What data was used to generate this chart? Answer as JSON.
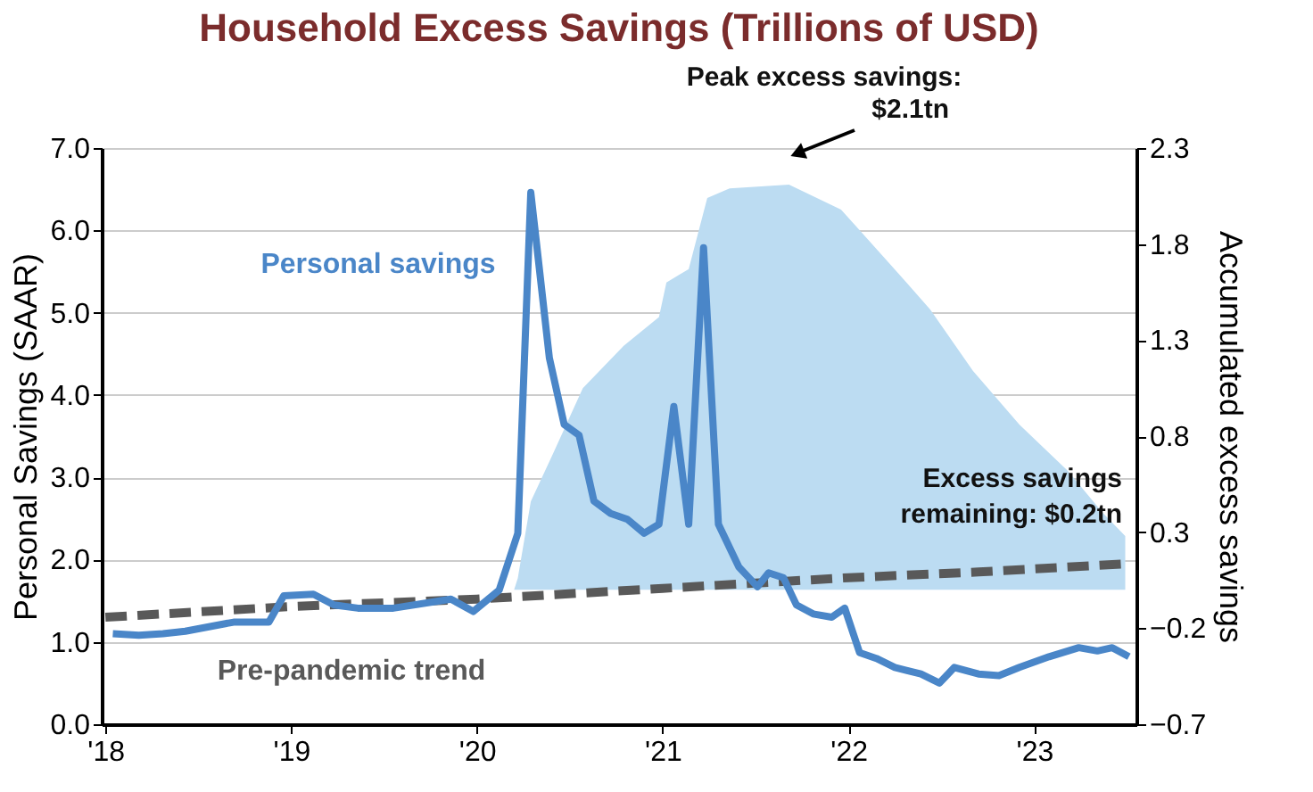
{
  "chart_data": {
    "type": "line",
    "title": "Household Excess Savings (Trillions of USD)",
    "ylabel": "Personal Savings (SAAR)",
    "y2label": "Accumulated excess savings",
    "xlim": [
      2017.98,
      2023.55
    ],
    "xticks": [
      {
        "value": 2018,
        "label": "'18"
      },
      {
        "value": 2019,
        "label": "'19"
      },
      {
        "value": 2020,
        "label": "'20"
      },
      {
        "value": 2021,
        "label": "'21"
      },
      {
        "value": 2022,
        "label": "'22"
      },
      {
        "value": 2023,
        "label": "'23"
      }
    ],
    "ylim": [
      0,
      7
    ],
    "yticks": [
      {
        "value": 0,
        "label": "0.0"
      },
      {
        "value": 1,
        "label": "1.0"
      },
      {
        "value": 2,
        "label": "2.0"
      },
      {
        "value": 3,
        "label": "3.0"
      },
      {
        "value": 4,
        "label": "4.0"
      },
      {
        "value": 5,
        "label": "5.0"
      },
      {
        "value": 6,
        "label": "6.0"
      },
      {
        "value": 7,
        "label": "7.0"
      }
    ],
    "y2lim": [
      -0.7,
      2.3
    ],
    "y2ticks": [
      -0.7,
      -0.2,
      0.3,
      0.8,
      1.3,
      1.8,
      2.3
    ],
    "grid": "y",
    "legend": false,
    "series": [
      {
        "type": "area",
        "axis": "y2",
        "color": "#bcdcf2",
        "x": [
          2020.2,
          2020.22,
          2020.29,
          2020.41,
          2020.57,
          2020.79,
          2020.98,
          2021.02,
          2021.14,
          2021.24,
          2021.36,
          2021.68,
          2021.96,
          2022.22,
          2022.44,
          2022.67,
          2022.92,
          2023.18,
          2023.37,
          2023.49
        ],
        "values": [
          0.0,
          0.06,
          0.46,
          0.71,
          1.05,
          1.27,
          1.42,
          1.6,
          1.67,
          2.04,
          2.09,
          2.11,
          1.98,
          1.7,
          1.46,
          1.14,
          0.86,
          0.62,
          0.4,
          0.28
        ]
      },
      {
        "name": "Pre-pandemic trend",
        "color": "#595959",
        "line_style": "dashed",
        "x": [
          2018.0,
          2019.0,
          2020.0,
          2021.0,
          2022.0,
          2022.7,
          2023.5
        ],
        "values": [
          1.3,
          1.43,
          1.52,
          1.65,
          1.78,
          1.85,
          1.95
        ]
      },
      {
        "name": "Personal savings",
        "color": "#4a86c8",
        "line_style": "solid",
        "x": [
          2018.04,
          2018.18,
          2018.31,
          2018.43,
          2018.69,
          2018.88,
          2018.96,
          2019.12,
          2019.23,
          2019.36,
          2019.55,
          2019.86,
          2019.98,
          2020.12,
          2020.22,
          2020.29,
          2020.39,
          2020.47,
          2020.55,
          2020.63,
          2020.72,
          2020.81,
          2020.9,
          2020.98,
          2021.06,
          2021.14,
          2021.22,
          2021.3,
          2021.41,
          2021.51,
          2021.57,
          2021.65,
          2021.72,
          2021.81,
          2021.91,
          2021.98,
          2022.06,
          2022.15,
          2022.25,
          2022.39,
          2022.49,
          2022.57,
          2022.7,
          2022.81,
          2022.92,
          2023.08,
          2023.24,
          2023.34,
          2023.42,
          2023.51
        ],
        "values": [
          1.1,
          1.08,
          1.1,
          1.13,
          1.24,
          1.24,
          1.56,
          1.58,
          1.45,
          1.41,
          1.41,
          1.52,
          1.37,
          1.63,
          2.32,
          6.46,
          4.45,
          3.64,
          3.51,
          2.71,
          2.56,
          2.49,
          2.32,
          2.43,
          3.86,
          2.43,
          5.79,
          2.43,
          1.91,
          1.67,
          1.84,
          1.78,
          1.45,
          1.34,
          1.3,
          1.41,
          0.87,
          0.8,
          0.69,
          0.61,
          0.5,
          0.69,
          0.61,
          0.59,
          0.69,
          0.82,
          0.93,
          0.89,
          0.93,
          0.82
        ]
      }
    ],
    "annotations": [
      "Peak excess savings: $2.1tn",
      "Excess savings remaining: $0.2tn"
    ]
  }
}
